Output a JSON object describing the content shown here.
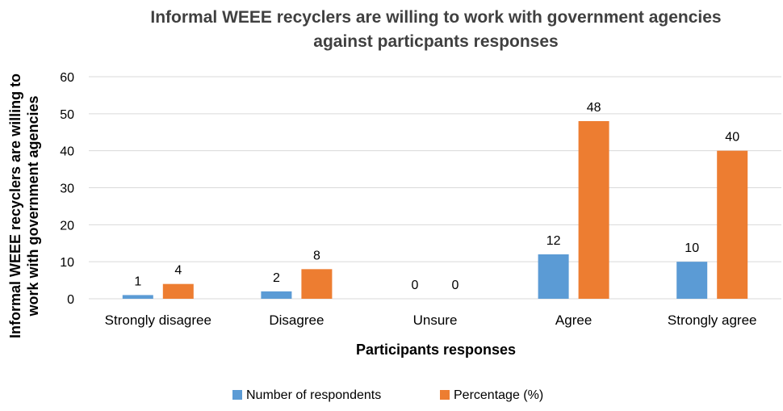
{
  "chart_data": {
    "type": "bar",
    "title_line1": "Informal WEEE recyclers are willing to work with government agencies",
    "title_line2": "against particpants responses",
    "xlabel": "Participants responses",
    "ylabel_line1": "Informal WEEE recyclers are willing to",
    "ylabel_line2": "work with government agencies",
    "categories": [
      "Strongly disagree",
      "Disagree",
      "Unsure",
      "Agree",
      "Strongly agree"
    ],
    "series": [
      {
        "name": "Number of respondents",
        "color": "#5b9bd5",
        "values": [
          1,
          2,
          0,
          12,
          10
        ]
      },
      {
        "name": "Percentage (%)",
        "color": "#ed7d31",
        "values": [
          4,
          8,
          0,
          48,
          40
        ]
      }
    ],
    "ylim": [
      0,
      60
    ],
    "yticks": [
      0,
      10,
      20,
      30,
      40,
      50,
      60
    ],
    "grid": true,
    "legend_position": "bottom"
  }
}
